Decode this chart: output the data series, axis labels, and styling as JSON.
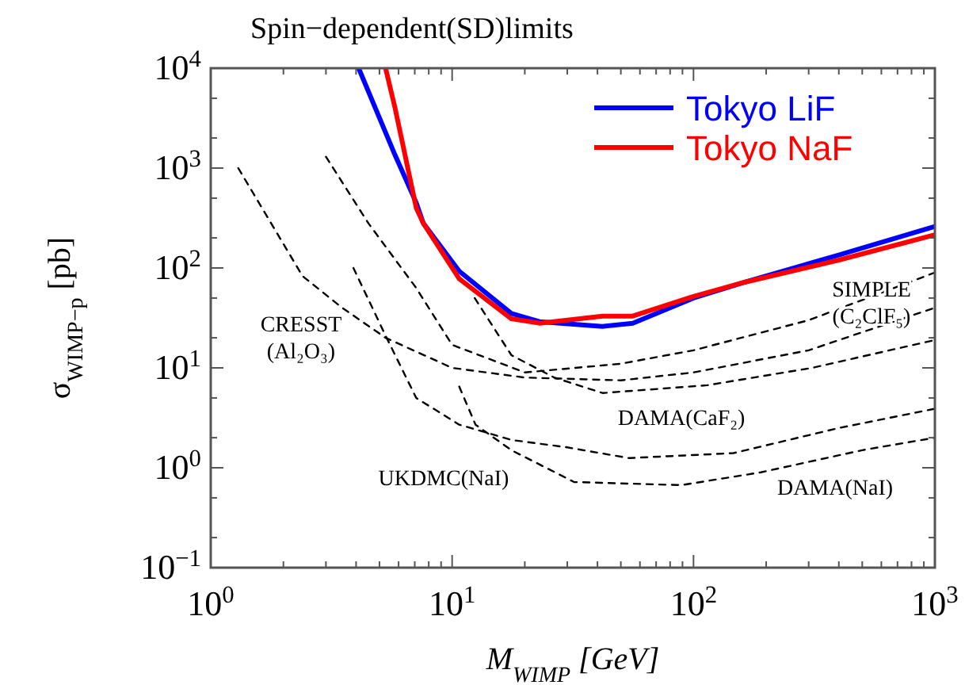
{
  "chart_data": {
    "type": "line",
    "title": "Spin−dependent(SD)limits",
    "xlabel": "M$_{WIMP}$ [GeV]",
    "ylabel": "σ$_{WIMP−p}$ [pb]",
    "log": "xy",
    "legend": "top right",
    "grid": false,
    "xlim": [
      1,
      1000
    ],
    "ylim": [
      0.1,
      10000
    ],
    "xticks": [
      {
        "value": 1,
        "label": "10$^{0}$"
      },
      {
        "value": 2,
        "label": null
      },
      {
        "value": 3,
        "label": null
      },
      {
        "value": 4,
        "label": null
      },
      {
        "value": 5,
        "label": null
      },
      {
        "value": 6,
        "label": null
      },
      {
        "value": 7,
        "label": null
      },
      {
        "value": 8,
        "label": null
      },
      {
        "value": 9,
        "label": null
      },
      {
        "value": 10,
        "label": "10$^{1}$"
      },
      {
        "value": 20,
        "label": null
      },
      {
        "value": 30,
        "label": null
      },
      {
        "value": 40,
        "label": null
      },
      {
        "value": 50,
        "label": null
      },
      {
        "value": 60,
        "label": null
      },
      {
        "value": 70,
        "label": null
      },
      {
        "value": 80,
        "label": null
      },
      {
        "value": 90,
        "label": null
      },
      {
        "value": 100,
        "label": "10$^{2}$"
      },
      {
        "value": 200,
        "label": null
      },
      {
        "value": 300,
        "label": null
      },
      {
        "value": 400,
        "label": null
      },
      {
        "value": 500,
        "label": null
      },
      {
        "value": 600,
        "label": null
      },
      {
        "value": 700,
        "label": null
      },
      {
        "value": 800,
        "label": null
      },
      {
        "value": 900,
        "label": null
      },
      {
        "value": 1000,
        "label": "10$^{3}$"
      }
    ],
    "yticks": [
      {
        "value": 0.1,
        "label": "10$^{−1}$"
      },
      {
        "value": 0.2,
        "label": null
      },
      {
        "value": 0.5,
        "label": null
      },
      {
        "value": 1,
        "label": "10$^{0}$"
      },
      {
        "value": 2,
        "label": null
      },
      {
        "value": 5,
        "label": null
      },
      {
        "value": 10,
        "label": "10$^{1}$"
      },
      {
        "value": 20,
        "label": null
      },
      {
        "value": 50,
        "label": null
      },
      {
        "value": 100,
        "label": "10$^{2}$"
      },
      {
        "value": 200,
        "label": null
      },
      {
        "value": 500,
        "label": null
      },
      {
        "value": 1000,
        "label": "10$^{3}$"
      },
      {
        "value": 2000,
        "label": null
      },
      {
        "value": 5000,
        "label": null
      },
      {
        "value": 10000,
        "label": "10$^{4}$"
      }
    ],
    "series": [
      {
        "name": "Tokyo LiF",
        "color": "#0000ff",
        "line_style": "solid",
        "x": [
          4.1,
          5.8,
          7.1,
          7.6,
          10.7,
          17.6,
          23,
          42,
          56,
          100,
          163,
          400,
          1000
        ],
        "values": [
          10000,
          1350,
          450,
          280,
          93,
          35,
          29,
          26,
          28,
          50,
          72,
          135,
          260
        ]
      },
      {
        "name": "Tokyo NaF",
        "color": "#ff0000",
        "line_style": "solid",
        "x": [
          5.3,
          5.8,
          7.1,
          7.6,
          10.7,
          17.6,
          23,
          42,
          56,
          100,
          163,
          400,
          1000
        ],
        "values": [
          10000,
          4000,
          400,
          280,
          78,
          31,
          28,
          33,
          33,
          52,
          72,
          120,
          215
        ]
      },
      {
        "color": "#000000",
        "line_style": "dashed",
        "x": [
          1.3,
          2.4,
          3.5,
          5.3,
          10,
          20,
          50,
          100,
          300,
          1000
        ],
        "values": [
          1000,
          83,
          40,
          20,
          10,
          8,
          7.5,
          9,
          15,
          40
        ]
      },
      {
        "color": "#000000",
        "line_style": "dashed",
        "x": [
          3,
          4.5,
          7.1,
          10,
          20,
          50,
          100,
          300,
          1000
        ],
        "values": [
          1300,
          280,
          63,
          17,
          9,
          11,
          15,
          30,
          90
        ]
      },
      {
        "color": "#000000",
        "line_style": "dashed",
        "x": [
          3.9,
          5.3,
          7.1,
          10.7,
          17.6,
          30,
          54,
          146,
          400,
          1000
        ],
        "values": [
          100,
          21,
          5,
          2.7,
          1.9,
          1.6,
          1.25,
          1.4,
          2.5,
          3.9
        ]
      },
      {
        "color": "#000000",
        "line_style": "dashed",
        "x": [
          10.7,
          12.5,
          17.6,
          32,
          89,
          190,
          500,
          1000
        ],
        "values": [
          6.5,
          2.7,
          1.5,
          0.72,
          0.67,
          0.9,
          1.5,
          2
        ]
      },
      {
        "color": "#000000",
        "line_style": "dashed",
        "x": [
          12.4,
          17.6,
          26.5,
          42,
          114,
          310,
          1000
        ],
        "values": [
          50,
          13.4,
          8,
          5.6,
          6.7,
          10,
          19
        ]
      }
    ],
    "annotations": [
      "CRESST\n(Al₂O₃)",
      "SIMPLE\n(C₂ClF₅)",
      "DAMA(CaF₂)",
      "UKDMC(NaI)",
      "DAMA(NaI)"
    ]
  }
}
